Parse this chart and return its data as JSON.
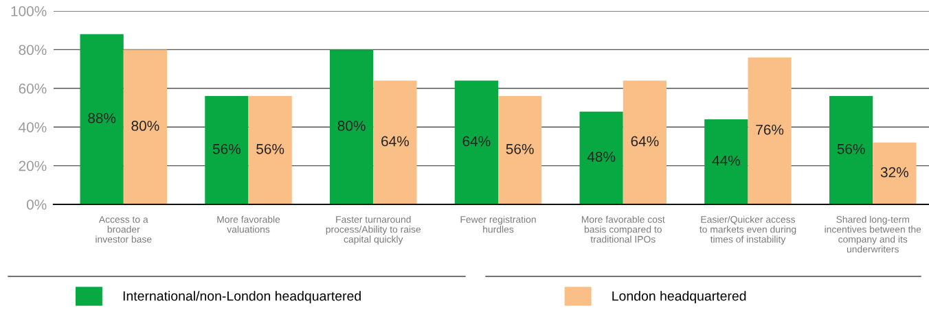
{
  "chart_data": {
    "type": "bar",
    "categories": [
      "Access to a\nbroader\ninvestor base",
      "More favorable\nvaluations",
      "Faster turnaround\nprocess/Ability to raise\ncapital quickly",
      "Fewer registration\nhurdles",
      "More favorable cost\nbasis compared to\ntraditional IPOs",
      "Easier/Quicker access\nto markets even during\ntimes of instability",
      "Shared long-term\nincentives between the\ncompany and its\nunderwriters"
    ],
    "series": [
      {
        "name": "International/non-London headquartered",
        "color": "#08a843",
        "values": [
          88,
          56,
          80,
          64,
          48,
          44,
          56
        ],
        "value_labels": [
          "88%",
          "56%",
          "80%",
          "64%",
          "48%",
          "44%",
          "56%"
        ]
      },
      {
        "name": "London headquartered",
        "color": "#f9bf86",
        "values": [
          80,
          56,
          64,
          56,
          64,
          76,
          32
        ],
        "value_labels": [
          "80%",
          "56%",
          "64%",
          "56%",
          "64%",
          "76%",
          "32%"
        ]
      }
    ],
    "ylim": [
      0,
      100
    ],
    "yticks": [
      {
        "value": 0,
        "label": "0%"
      },
      {
        "value": 20,
        "label": "20%"
      },
      {
        "value": 40,
        "label": "40%"
      },
      {
        "value": 60,
        "label": "60%"
      },
      {
        "value": 80,
        "label": "80%"
      },
      {
        "value": 100,
        "label": "100%"
      }
    ],
    "grid": "y",
    "legend": "bottom"
  }
}
